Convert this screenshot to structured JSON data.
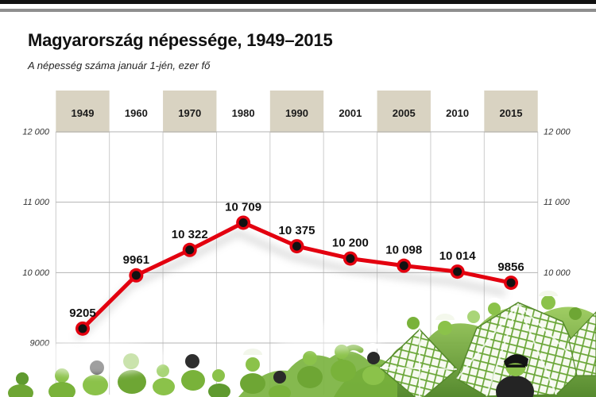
{
  "header": {
    "title": "Magyarország népessége, 1949–2015",
    "subtitle": "A népesség száma január 1-jén, ezer fő"
  },
  "chart_data": {
    "type": "line",
    "title": "Magyarország népessége, 1949–2015",
    "subtitle": "A népesség száma január 1-jén, ezer fő",
    "categories": [
      "1949",
      "1960",
      "1970",
      "1980",
      "1990",
      "2001",
      "2005",
      "2010",
      "2015"
    ],
    "values": [
      9205,
      9961,
      10322,
      10709,
      10375,
      10200,
      10098,
      10014,
      9856
    ],
    "value_labels": [
      "9205",
      "9961",
      "10 322",
      "10 709",
      "10 375",
      "10 200",
      "10 098",
      "10 014",
      "9856"
    ],
    "y_axis": {
      "ticks": [
        12000,
        11000,
        10000,
        9000
      ],
      "left_tick_labels": [
        "12 000",
        "11 000",
        "10 000",
        "9000"
      ],
      "right_tick_labels": [
        "12 000",
        "11 000",
        "10 000"
      ],
      "min": 9000,
      "max": 12000
    },
    "grid": true,
    "legend": false,
    "band_columns": [
      0,
      2,
      4,
      6,
      8
    ],
    "colors": {
      "line": "#e3000f",
      "marker_ring": "#e3000f",
      "marker_core": "#121212",
      "header_band": "#d9d3c2",
      "grid_horizontal": "#b3b3b3",
      "grid_vertical": "#cccccc",
      "year_label": "#1a1a1a",
      "value_label": "#111111",
      "tick_label": "#333333",
      "top_bar_black": "#111111",
      "top_bar_gray": "#8e8e8e"
    }
  }
}
